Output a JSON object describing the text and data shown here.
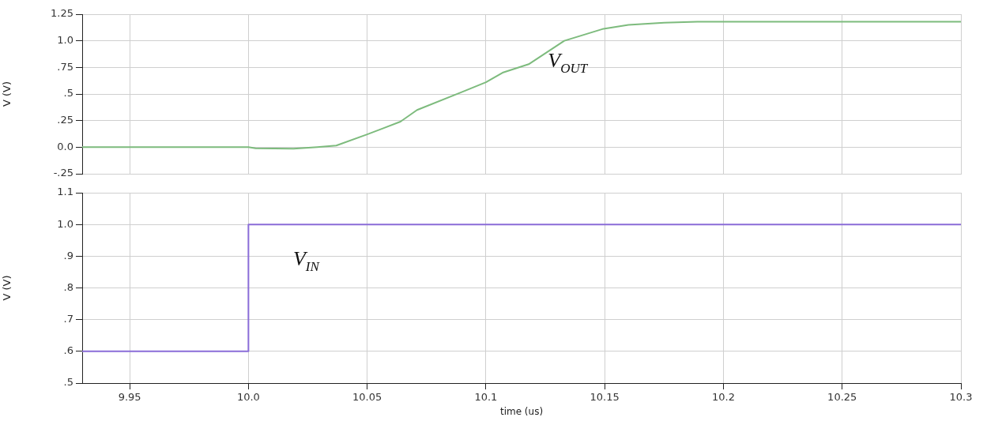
{
  "chart_data": [
    {
      "type": "line",
      "ylabel": "V (V)",
      "xlim": [
        9.93,
        10.3
      ],
      "xticks": [
        9.95,
        10.0,
        10.05,
        10.1,
        10.15,
        10.2,
        10.25,
        10.3
      ],
      "ylim": [
        -0.25,
        1.25
      ],
      "yticks": [
        {
          "value": -0.25,
          "label": "-.25"
        },
        {
          "value": 0,
          "label": "0.0"
        },
        {
          "value": 0.25,
          "label": ".25"
        },
        {
          "value": 0.5,
          "label": ".5"
        },
        {
          "value": 0.75,
          "label": ".75"
        },
        {
          "value": 1.0,
          "label": "1.0"
        },
        1.25
      ],
      "tick_labels": "y",
      "grid": true,
      "legend": false,
      "marker": "none",
      "line_style": "solid",
      "series": [
        {
          "name": "V$_{OUT}$",
          "color": "#7dbb7d",
          "x": [
            9.93,
            10.0,
            10.003,
            10.019,
            10.029,
            10.037,
            10.05,
            10.057,
            10.064,
            10.071,
            10.09,
            10.1,
            10.107,
            10.118,
            10.133,
            10.149,
            10.16,
            10.175,
            10.189,
            10.3
          ],
          "values": [
            0.0,
            0.0,
            -0.01,
            -0.015,
            0.0,
            0.015,
            0.12,
            0.18,
            0.24,
            0.35,
            0.52,
            0.61,
            0.7,
            0.78,
            1.0,
            1.11,
            1.15,
            1.17,
            1.18,
            1.18
          ]
        }
      ]
    },
    {
      "type": "step",
      "xlabel": "time (us)",
      "ylabel": "V (V)",
      "xlim": [
        9.93,
        10.3
      ],
      "xticks": [
        9.95,
        {
          "value": 10.0,
          "label": "10.0"
        },
        10.05,
        10.1,
        10.15,
        10.2,
        10.25,
        10.3
      ],
      "ylim": [
        0.5,
        1.1
      ],
      "yticks": [
        {
          "value": 0.5,
          "label": ".5"
        },
        {
          "value": 0.6,
          "label": ".6"
        },
        {
          "value": 0.7,
          "label": ".7"
        },
        {
          "value": 0.8,
          "label": ".8"
        },
        {
          "value": 0.9,
          "label": ".9"
        },
        {
          "value": 1.0,
          "label": "1.0"
        },
        1.1
      ],
      "grid": true,
      "legend": false,
      "marker": "none",
      "line_style": "solid",
      "series": [
        {
          "name": "V$_{IN}$",
          "color": "#8a6cd8",
          "x": [
            9.93,
            10.0,
            10.3
          ],
          "values": [
            0.6,
            1.0,
            1.0
          ]
        }
      ]
    }
  ]
}
